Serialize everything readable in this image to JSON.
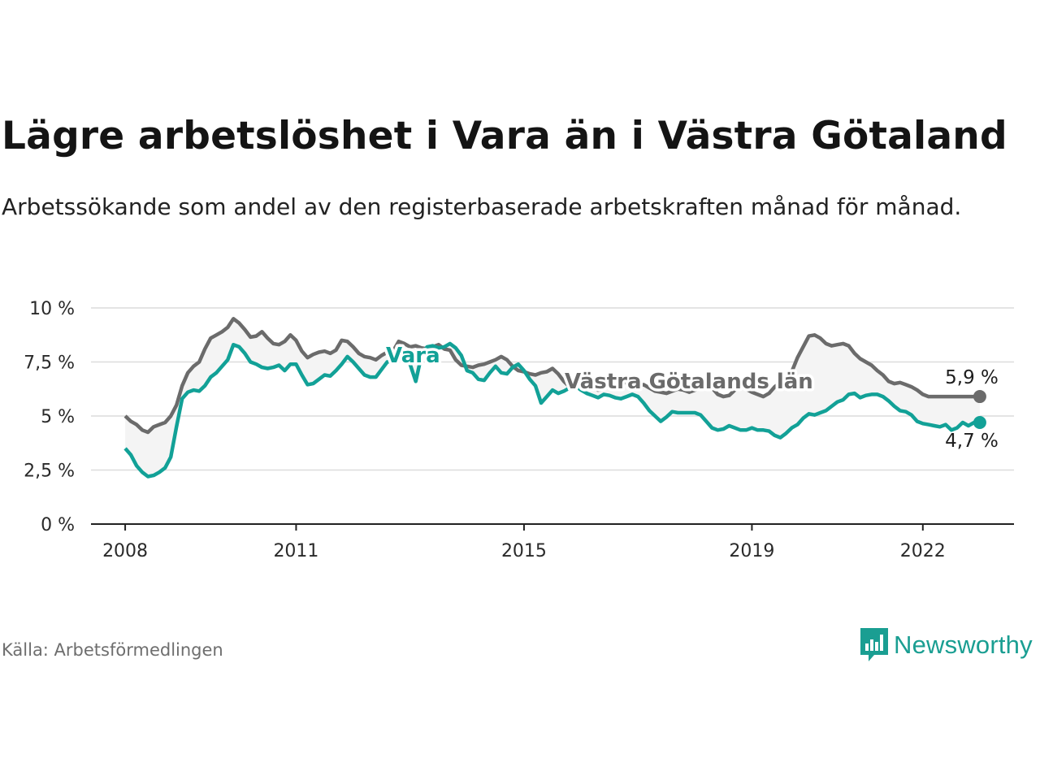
{
  "header": {
    "title": "Lägre arbetslöshet i Vara än i Västra Götaland",
    "subtitle": "Arbetssökande som andel av den registerbaserade arbetskraften månad för månad."
  },
  "footer": {
    "source": "Källa: Arbetsförmedlingen",
    "brand": "Newsworthy"
  },
  "colors": {
    "vara": "#12a197",
    "vastra_gotaland": "#6b6b6b",
    "band_fill": "#f4f4f4",
    "grid": "#dcdcdc",
    "axis": "#222222"
  },
  "chart_data": {
    "type": "line",
    "title": "Lägre arbetslöshet i Vara än i Västra Götaland",
    "xlabel": "",
    "ylabel": "",
    "ylim": [
      0,
      10
    ],
    "xlim": [
      2007.4,
      2023.6
    ],
    "yticks": [
      0,
      2.5,
      5,
      7.5,
      10
    ],
    "ytick_labels": [
      "0 %",
      "2,5 %",
      "5 %",
      "7,5 %",
      "10 %"
    ],
    "xticks": [
      2008,
      2011,
      2015,
      2019,
      2022
    ],
    "xtick_labels": [
      "2008",
      "2011",
      "2015",
      "2019",
      "2022"
    ],
    "grid": true,
    "series": [
      {
        "name": "Västra Götalands län",
        "label": "Västra Götalands län",
        "end_label": "5,9 %",
        "x": [
          2008.0,
          2008.1,
          2008.2,
          2008.3,
          2008.4,
          2008.5,
          2008.6,
          2008.7,
          2008.8,
          2008.9,
          2009.0,
          2009.1,
          2009.2,
          2009.3,
          2009.4,
          2009.5,
          2009.6,
          2009.7,
          2009.8,
          2009.9,
          2010.0,
          2010.1,
          2010.2,
          2010.3,
          2010.4,
          2010.5,
          2010.6,
          2010.7,
          2010.8,
          2010.9,
          2011.0,
          2011.1,
          2011.2,
          2011.3,
          2011.4,
          2011.5,
          2011.6,
          2011.7,
          2011.8,
          2011.9,
          2012.0,
          2012.1,
          2012.2,
          2012.3,
          2012.4,
          2012.5,
          2012.6,
          2012.7,
          2012.8,
          2012.9,
          2013.0,
          2013.1,
          2013.2,
          2013.3,
          2013.4,
          2013.5,
          2013.6,
          2013.7,
          2013.8,
          2013.9,
          2014.0,
          2014.1,
          2014.2,
          2014.3,
          2014.4,
          2014.5,
          2014.6,
          2014.7,
          2014.8,
          2014.9,
          2015.0,
          2015.1,
          2015.2,
          2015.3,
          2015.4,
          2015.5,
          2015.6,
          2015.7,
          2015.8,
          2015.9,
          2016.0,
          2016.1,
          2016.2,
          2016.3,
          2016.4,
          2016.5,
          2016.6,
          2016.7,
          2016.8,
          2016.9,
          2017.0,
          2017.1,
          2017.2,
          2017.3,
          2017.4,
          2017.5,
          2017.6,
          2017.7,
          2017.8,
          2017.9,
          2018.0,
          2018.1,
          2018.2,
          2018.3,
          2018.4,
          2018.5,
          2018.6,
          2018.7,
          2018.8,
          2018.9,
          2019.0,
          2019.1,
          2019.2,
          2019.3,
          2019.4,
          2019.5,
          2019.6,
          2019.7,
          2019.8,
          2019.9,
          2020.0,
          2020.1,
          2020.2,
          2020.3,
          2020.4,
          2020.5,
          2020.6,
          2020.7,
          2020.8,
          2020.9,
          2021.0,
          2021.1,
          2021.2,
          2021.3,
          2021.4,
          2021.5,
          2021.6,
          2021.7,
          2021.8,
          2021.9,
          2022.0,
          2022.1,
          2022.2,
          2022.3,
          2022.4,
          2022.5,
          2022.6,
          2022.7,
          2022.8,
          2022.9,
          2023.0
        ],
        "values": [
          5.0,
          4.75,
          4.6,
          4.35,
          4.25,
          4.5,
          4.6,
          4.7,
          5.0,
          5.5,
          6.4,
          7.0,
          7.3,
          7.5,
          8.1,
          8.6,
          8.75,
          8.9,
          9.1,
          9.5,
          9.3,
          9.0,
          8.65,
          8.7,
          8.9,
          8.6,
          8.35,
          8.3,
          8.45,
          8.75,
          8.5,
          8.0,
          7.7,
          7.85,
          7.95,
          8.0,
          7.9,
          8.05,
          8.5,
          8.45,
          8.2,
          7.9,
          7.75,
          7.7,
          7.6,
          7.8,
          7.95,
          8.0,
          8.45,
          8.35,
          8.2,
          8.25,
          8.15,
          8.1,
          8.2,
          8.3,
          8.1,
          8.05,
          7.6,
          7.35,
          7.3,
          7.25,
          7.35,
          7.4,
          7.5,
          7.6,
          7.75,
          7.6,
          7.3,
          7.1,
          7.05,
          6.95,
          6.9,
          7.0,
          7.05,
          7.2,
          6.95,
          6.6,
          6.35,
          6.4,
          6.55,
          6.6,
          6.4,
          6.2,
          6.25,
          6.5,
          6.75,
          6.7,
          6.5,
          6.3,
          6.4,
          6.45,
          6.3,
          6.15,
          6.1,
          6.05,
          6.15,
          6.25,
          6.2,
          6.1,
          6.2,
          6.3,
          6.4,
          6.3,
          6.0,
          5.9,
          5.95,
          6.2,
          6.35,
          6.25,
          6.1,
          6.0,
          5.9,
          6.05,
          6.35,
          6.55,
          6.8,
          7.05,
          7.7,
          8.2,
          8.7,
          8.75,
          8.6,
          8.35,
          8.25,
          8.3,
          8.35,
          8.25,
          7.9,
          7.65,
          7.5,
          7.35,
          7.1,
          6.9,
          6.6,
          6.5,
          6.55,
          6.45,
          6.35,
          6.2,
          6.0,
          5.9,
          5.9,
          5.9,
          5.9,
          5.9,
          5.9,
          5.9,
          5.9,
          5.9,
          5.9
        ]
      },
      {
        "name": "Vara",
        "label": "Vara",
        "end_label": "4,7 %",
        "x": [
          2008.0,
          2008.1,
          2008.2,
          2008.3,
          2008.4,
          2008.5,
          2008.6,
          2008.7,
          2008.8,
          2008.9,
          2009.0,
          2009.1,
          2009.2,
          2009.3,
          2009.4,
          2009.5,
          2009.6,
          2009.7,
          2009.8,
          2009.9,
          2010.0,
          2010.1,
          2010.2,
          2010.3,
          2010.4,
          2010.5,
          2010.6,
          2010.7,
          2010.8,
          2010.9,
          2011.0,
          2011.1,
          2011.2,
          2011.3,
          2011.4,
          2011.5,
          2011.6,
          2011.7,
          2011.8,
          2011.9,
          2012.0,
          2012.1,
          2012.2,
          2012.3,
          2012.4,
          2012.5,
          2012.6,
          2012.7,
          2012.8,
          2012.9,
          2013.0,
          2013.1,
          2013.2,
          2013.3,
          2013.4,
          2013.5,
          2013.6,
          2013.7,
          2013.8,
          2013.9,
          2014.0,
          2014.1,
          2014.2,
          2014.3,
          2014.4,
          2014.5,
          2014.6,
          2014.7,
          2014.8,
          2014.9,
          2015.0,
          2015.1,
          2015.2,
          2015.3,
          2015.4,
          2015.5,
          2015.6,
          2015.7,
          2015.8,
          2015.9,
          2016.0,
          2016.1,
          2016.2,
          2016.3,
          2016.4,
          2016.5,
          2016.6,
          2016.7,
          2016.8,
          2016.9,
          2017.0,
          2017.1,
          2017.2,
          2017.3,
          2017.4,
          2017.5,
          2017.6,
          2017.7,
          2017.8,
          2017.9,
          2018.0,
          2018.1,
          2018.2,
          2018.3,
          2018.4,
          2018.5,
          2018.6,
          2018.7,
          2018.8,
          2018.9,
          2019.0,
          2019.1,
          2019.2,
          2019.3,
          2019.4,
          2019.5,
          2019.6,
          2019.7,
          2019.8,
          2019.9,
          2020.0,
          2020.1,
          2020.2,
          2020.3,
          2020.4,
          2020.5,
          2020.6,
          2020.7,
          2020.8,
          2020.9,
          2021.0,
          2021.1,
          2021.2,
          2021.3,
          2021.4,
          2021.5,
          2021.6,
          2021.7,
          2021.8,
          2021.9,
          2022.0,
          2022.1,
          2022.2,
          2022.3,
          2022.4,
          2022.5,
          2022.6,
          2022.7,
          2022.8,
          2022.9,
          2023.0
        ],
        "values": [
          3.5,
          3.2,
          2.7,
          2.4,
          2.2,
          2.25,
          2.4,
          2.6,
          3.1,
          4.5,
          5.8,
          6.1,
          6.2,
          6.15,
          6.4,
          6.8,
          7.0,
          7.3,
          7.6,
          8.3,
          8.2,
          7.9,
          7.5,
          7.4,
          7.25,
          7.2,
          7.25,
          7.35,
          7.1,
          7.4,
          7.4,
          6.9,
          6.45,
          6.5,
          6.7,
          6.9,
          6.85,
          7.1,
          7.4,
          7.75,
          7.5,
          7.2,
          6.9,
          6.8,
          6.8,
          7.15,
          7.5,
          7.55,
          7.7,
          7.8,
          7.4,
          6.6,
          7.8,
          8.2,
          8.25,
          8.15,
          8.2,
          8.35,
          8.15,
          7.8,
          7.1,
          7.0,
          6.7,
          6.65,
          7.0,
          7.3,
          7.0,
          6.95,
          7.25,
          7.4,
          7.1,
          6.7,
          6.4,
          5.6,
          5.9,
          6.2,
          6.05,
          6.15,
          6.3,
          6.4,
          6.2,
          6.05,
          5.95,
          5.85,
          6.0,
          5.95,
          5.85,
          5.8,
          5.9,
          6.0,
          5.9,
          5.6,
          5.25,
          5.0,
          4.75,
          4.95,
          5.2,
          5.15,
          5.15,
          5.15,
          5.15,
          5.05,
          4.75,
          4.45,
          4.35,
          4.4,
          4.55,
          4.45,
          4.35,
          4.35,
          4.45,
          4.35,
          4.35,
          4.3,
          4.1,
          4.0,
          4.2,
          4.45,
          4.6,
          4.9,
          5.1,
          5.05,
          5.15,
          5.25,
          5.45,
          5.65,
          5.75,
          6.0,
          6.05,
          5.85,
          5.95,
          6.0,
          6.0,
          5.9,
          5.7,
          5.45,
          5.25,
          5.2,
          5.05,
          4.75,
          4.65,
          4.6,
          4.55,
          4.5,
          4.6,
          4.35,
          4.45,
          4.7,
          4.55,
          4.7,
          4.7
        ]
      }
    ]
  }
}
